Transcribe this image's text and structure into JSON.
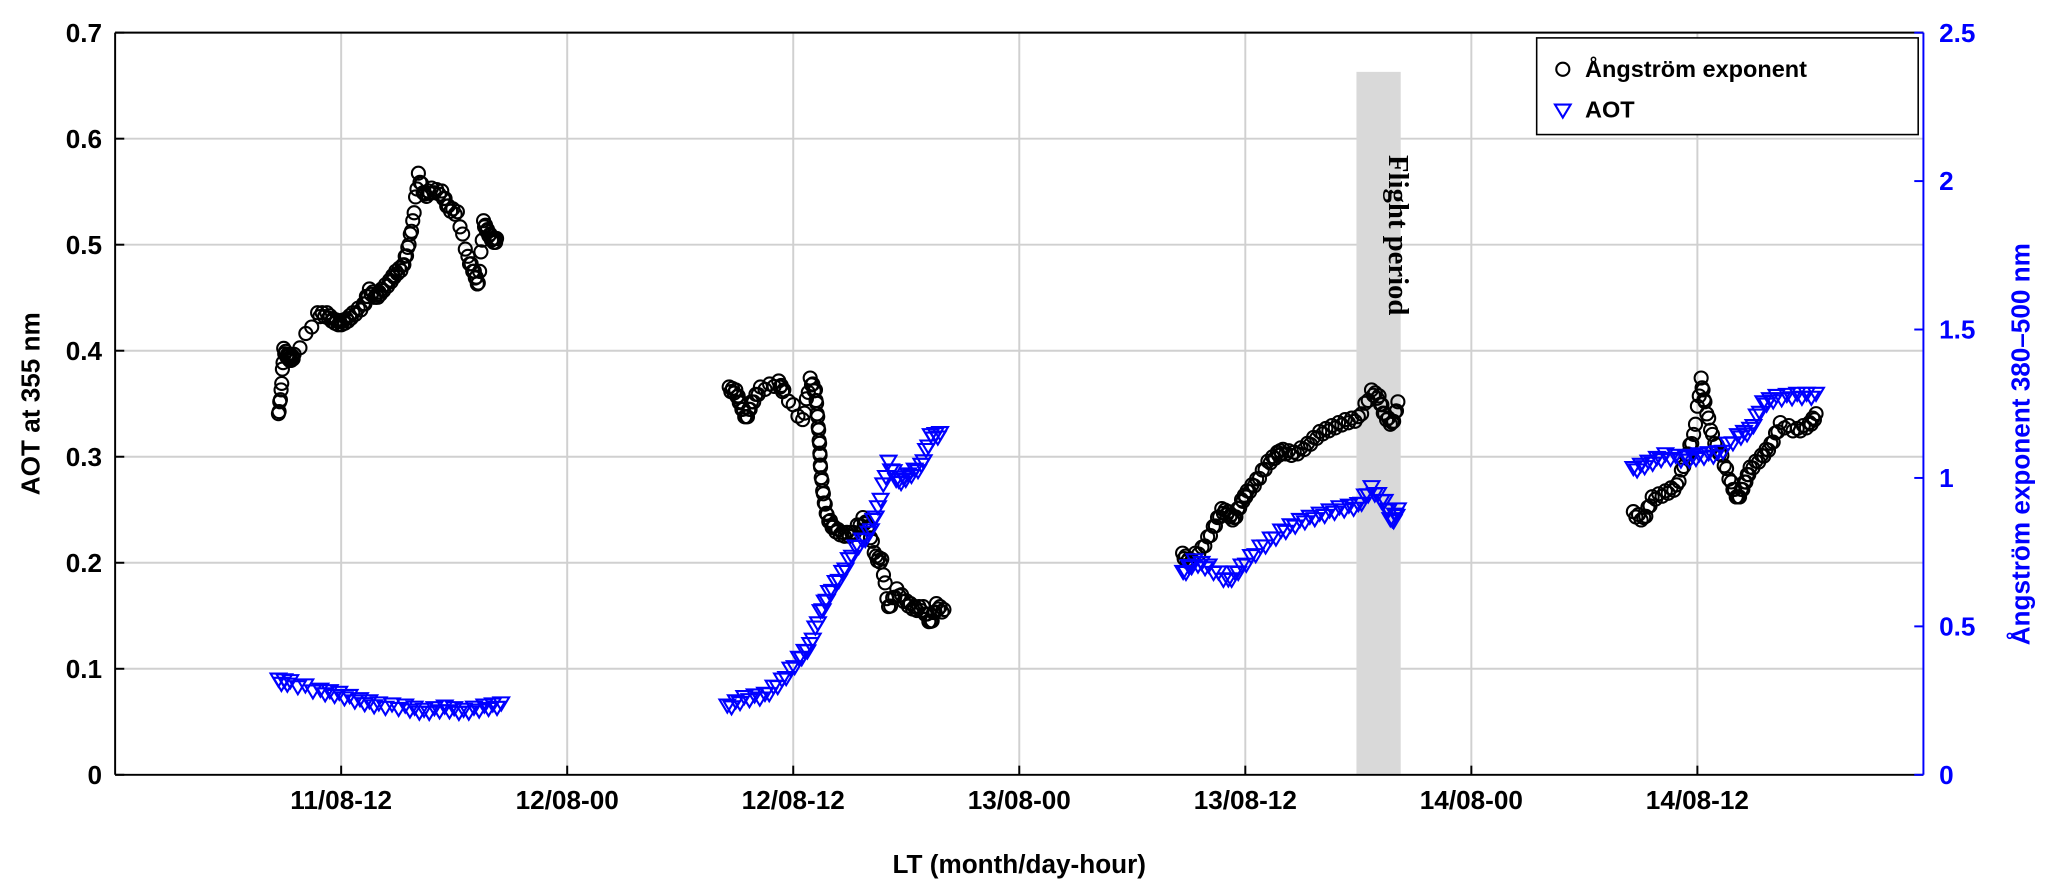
{
  "chart_data": {
    "type": "scatter",
    "xlabel": "LT (month/day-hour)",
    "ylabel_left": "AOT at 355 nm",
    "ylabel_right": "Ångström exponent 380–500 nm",
    "x_unit": "hours since 11/08-00",
    "xlim": [
      0,
      96
    ],
    "ylim_left": [
      0,
      0.7
    ],
    "ylim_right": [
      0,
      2.5
    ],
    "x_ticks": [
      {
        "x": 12,
        "label": "11/08-12"
      },
      {
        "x": 24,
        "label": "12/08-00"
      },
      {
        "x": 36,
        "label": "12/08-12"
      },
      {
        "x": 48,
        "label": "13/08-00"
      },
      {
        "x": 60,
        "label": "13/08-12"
      },
      {
        "x": 72,
        "label": "14/08-00"
      },
      {
        "x": 84,
        "label": "14/08-12"
      }
    ],
    "y_ticks_left": [
      "0",
      "0.1",
      "0.2",
      "0.3",
      "0.4",
      "0.5",
      "0.6",
      "0.7"
    ],
    "y_ticks_right": [
      "0",
      "0.5",
      "1",
      "1.5",
      "2",
      "2.5"
    ],
    "grid": true,
    "legend_position": "top-right",
    "annotation": {
      "text": "Flight period",
      "x_range": [
        65.9,
        68.25
      ]
    },
    "colors": {
      "angstrom": "#000000",
      "aot": "#0000ff",
      "right_axis": "#0000ff",
      "band": "#d9d9d9"
    },
    "series": [
      {
        "name": "Ångström exponent",
        "marker": "circle",
        "axis": "right",
        "segments": [
          [
            [
              8.67,
              1.21
            ],
            [
              8.81,
              1.29
            ],
            [
              8.95,
              1.43
            ],
            [
              9.16,
              1.41
            ],
            [
              9.3,
              1.4
            ],
            [
              9.5,
              1.41
            ],
            [
              10.75,
              1.55
            ],
            [
              11.24,
              1.55
            ],
            [
              11.58,
              1.53
            ],
            [
              11.93,
              1.52
            ],
            [
              12.28,
              1.53
            ],
            [
              12.62,
              1.55
            ],
            [
              13.18,
              1.58
            ],
            [
              13.5,
              1.63
            ],
            [
              13.87,
              1.61
            ],
            [
              14.15,
              1.63
            ],
            [
              14.57,
              1.66
            ],
            [
              14.9,
              1.69
            ],
            [
              15.26,
              1.71
            ],
            [
              15.54,
              1.77
            ],
            [
              15.8,
              1.86
            ],
            [
              16.1,
              2.02
            ],
            [
              16.44,
              1.95
            ],
            [
              16.8,
              1.97
            ],
            [
              17.34,
              1.96
            ],
            [
              17.69,
              1.91
            ],
            [
              18.17,
              1.89
            ],
            [
              18.73,
              1.74
            ],
            [
              19.07,
              1.69
            ],
            [
              19.28,
              1.65
            ],
            [
              19.56,
              1.86
            ],
            [
              19.77,
              1.83
            ],
            [
              20.05,
              1.8
            ],
            [
              20.25,
              1.8
            ]
          ],
          [
            [
              32.6,
              1.3
            ],
            [
              32.95,
              1.29
            ],
            [
              33.2,
              1.25
            ],
            [
              33.5,
              1.2
            ],
            [
              33.78,
              1.25
            ],
            [
              34.26,
              1.3
            ],
            [
              35.23,
              1.32
            ],
            [
              35.5,
              1.29
            ],
            [
              36.5,
              1.19
            ],
            [
              36.9,
              1.33
            ],
            [
              37.18,
              1.29
            ],
            [
              37.3,
              1.2
            ],
            [
              37.4,
              1.11
            ],
            [
              37.45,
              1.03
            ],
            [
              37.6,
              0.94
            ],
            [
              37.8,
              0.87
            ],
            [
              38.15,
              0.83
            ],
            [
              38.6,
              0.81
            ],
            [
              39.1,
              0.81
            ],
            [
              39.7,
              0.86
            ],
            [
              40.0,
              0.83
            ],
            [
              40.4,
              0.73
            ],
            [
              40.7,
              0.72
            ],
            [
              41.06,
              0.56
            ],
            [
              41.5,
              0.62
            ],
            [
              42.0,
              0.58
            ],
            [
              42.45,
              0.56
            ],
            [
              42.9,
              0.56
            ],
            [
              43.3,
              0.51
            ],
            [
              43.6,
              0.57
            ],
            [
              44.0,
              0.55
            ]
          ],
          [
            [
              56.67,
              0.74
            ],
            [
              57.0,
              0.72
            ],
            [
              57.7,
              0.76
            ],
            [
              58.3,
              0.83
            ],
            [
              58.75,
              0.89
            ],
            [
              59.1,
              0.88
            ],
            [
              59.4,
              0.86
            ],
            [
              59.8,
              0.92
            ],
            [
              60.1,
              0.95
            ],
            [
              60.6,
              0.99
            ],
            [
              61.2,
              1.05
            ],
            [
              61.7,
              1.08
            ],
            [
              62.0,
              1.09
            ],
            [
              62.6,
              1.08
            ],
            [
              63.3,
              1.11
            ],
            [
              63.95,
              1.15
            ],
            [
              64.6,
              1.17
            ],
            [
              65.3,
              1.19
            ],
            [
              66.0,
              1.2
            ],
            [
              66.7,
              1.29
            ],
            [
              67.1,
              1.27
            ],
            [
              67.4,
              1.21
            ],
            [
              67.8,
              1.18
            ],
            [
              68.1,
              1.25
            ]
          ],
          [
            [
              80.6,
              0.88
            ],
            [
              81.15,
              0.86
            ],
            [
              81.6,
              0.93
            ],
            [
              82.3,
              0.95
            ],
            [
              82.9,
              0.97
            ],
            [
              83.4,
              1.07
            ],
            [
              83.8,
              1.14
            ],
            [
              84.2,
              1.33
            ],
            [
              84.4,
              1.25
            ],
            [
              84.8,
              1.14
            ],
            [
              85.3,
              1.07
            ],
            [
              85.8,
              0.98
            ],
            [
              86.15,
              0.93
            ],
            [
              86.5,
              0.98
            ],
            [
              86.8,
              1.03
            ],
            [
              87.4,
              1.07
            ],
            [
              87.9,
              1.11
            ],
            [
              88.4,
              1.18
            ],
            [
              89.3,
              1.16
            ],
            [
              89.95,
              1.18
            ],
            [
              90.3,
              1.21
            ]
          ]
        ]
      },
      {
        "name": "AOT",
        "marker": "triangle-down",
        "axis": "left",
        "segments": [
          [
            [
              8.67,
              0.0875
            ],
            [
              9.3,
              0.086
            ],
            [
              10.9,
              0.078
            ],
            [
              11.9,
              0.075
            ],
            [
              13.0,
              0.069
            ],
            [
              14.0,
              0.065
            ],
            [
              15.4,
              0.063
            ],
            [
              16.4,
              0.059
            ],
            [
              17.5,
              0.062
            ],
            [
              18.5,
              0.059
            ],
            [
              19.6,
              0.063
            ],
            [
              20.5,
              0.065
            ]
          ],
          [
            [
              32.5,
              0.063
            ],
            [
              33.4,
              0.071
            ],
            [
              34.5,
              0.074
            ],
            [
              35.4,
              0.0875
            ],
            [
              36.3,
              0.108
            ],
            [
              36.9,
              0.121
            ],
            [
              37.45,
              0.152
            ],
            [
              37.9,
              0.17
            ],
            [
              38.6,
              0.189
            ],
            [
              39.3,
              0.213
            ],
            [
              40.0,
              0.226
            ],
            [
              40.5,
              0.25
            ],
            [
              41.06,
              0.293
            ],
            [
              41.6,
              0.275
            ],
            [
              42.1,
              0.281
            ],
            [
              42.8,
              0.29
            ],
            [
              43.3,
              0.318
            ],
            [
              43.8,
              0.32
            ]
          ],
          [
            [
              56.7,
              0.189
            ],
            [
              57.3,
              0.2
            ],
            [
              58.05,
              0.195
            ],
            [
              59.1,
              0.182
            ],
            [
              59.8,
              0.195
            ],
            [
              60.8,
              0.213
            ],
            [
              61.9,
              0.228
            ],
            [
              62.9,
              0.238
            ],
            [
              63.95,
              0.244
            ],
            [
              65.0,
              0.25
            ],
            [
              66.0,
              0.253
            ],
            [
              66.7,
              0.269
            ],
            [
              67.4,
              0.256
            ],
            [
              67.8,
              0.238
            ],
            [
              68.1,
              0.248
            ]
          ],
          [
            [
              80.6,
              0.287
            ],
            [
              81.4,
              0.293
            ],
            [
              82.3,
              0.3
            ],
            [
              83.4,
              0.297
            ],
            [
              84.1,
              0.3
            ],
            [
              85.1,
              0.302
            ],
            [
              86.15,
              0.318
            ],
            [
              86.8,
              0.324
            ],
            [
              87.5,
              0.349
            ],
            [
              88.2,
              0.355
            ],
            [
              89.3,
              0.357
            ],
            [
              90.3,
              0.357
            ]
          ]
        ]
      }
    ]
  }
}
